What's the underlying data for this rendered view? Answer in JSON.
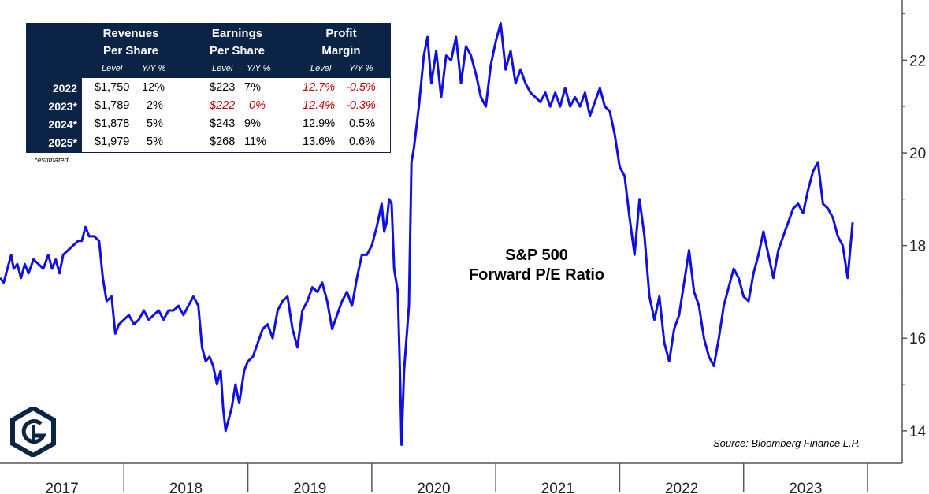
{
  "chart_data": {
    "type": "line",
    "title": "S&P 500",
    "subtitle": "Forward P/E Ratio",
    "source": "Source: Bloomberg Finance L.P.",
    "ylim": [
      13.3,
      23.3
    ],
    "xlim": [
      2017.0,
      2024.0
    ],
    "y_ticks": [
      14,
      16,
      18,
      20,
      22
    ],
    "x_tick_labels": [
      "2017",
      "2018",
      "2019",
      "2020",
      "2021",
      "2022",
      "2023"
    ],
    "series": [
      {
        "name": "S&P 500 Forward P/E",
        "color": "#1010e0",
        "points": [
          [
            2017.0,
            17.3
          ],
          [
            2017.03,
            17.2
          ],
          [
            2017.06,
            17.5
          ],
          [
            2017.09,
            17.8
          ],
          [
            2017.11,
            17.5
          ],
          [
            2017.14,
            17.6
          ],
          [
            2017.17,
            17.3
          ],
          [
            2017.2,
            17.6
          ],
          [
            2017.23,
            17.4
          ],
          [
            2017.27,
            17.7
          ],
          [
            2017.31,
            17.6
          ],
          [
            2017.35,
            17.5
          ],
          [
            2017.39,
            17.8
          ],
          [
            2017.42,
            17.5
          ],
          [
            2017.45,
            17.7
          ],
          [
            2017.48,
            17.4
          ],
          [
            2017.51,
            17.8
          ],
          [
            2017.55,
            17.9
          ],
          [
            2017.59,
            18.0
          ],
          [
            2017.63,
            18.1
          ],
          [
            2017.66,
            18.1
          ],
          [
            2017.69,
            18.4
          ],
          [
            2017.72,
            18.2
          ],
          [
            2017.76,
            18.2
          ],
          [
            2017.8,
            18.1
          ],
          [
            2017.83,
            17.3
          ],
          [
            2017.86,
            16.8
          ],
          [
            2017.9,
            16.9
          ],
          [
            2017.93,
            16.1
          ],
          [
            2017.96,
            16.3
          ],
          [
            2018.0,
            16.4
          ],
          [
            2018.04,
            16.5
          ],
          [
            2018.08,
            16.3
          ],
          [
            2018.12,
            16.4
          ],
          [
            2018.16,
            16.6
          ],
          [
            2018.2,
            16.4
          ],
          [
            2018.24,
            16.5
          ],
          [
            2018.28,
            16.6
          ],
          [
            2018.32,
            16.4
          ],
          [
            2018.36,
            16.6
          ],
          [
            2018.4,
            16.6
          ],
          [
            2018.44,
            16.7
          ],
          [
            2018.48,
            16.5
          ],
          [
            2018.52,
            16.7
          ],
          [
            2018.56,
            16.9
          ],
          [
            2018.6,
            16.7
          ],
          [
            2018.63,
            15.8
          ],
          [
            2018.66,
            15.5
          ],
          [
            2018.69,
            15.6
          ],
          [
            2018.72,
            15.4
          ],
          [
            2018.75,
            15.0
          ],
          [
            2018.78,
            15.3
          ],
          [
            2018.8,
            14.5
          ],
          [
            2018.82,
            14.0
          ],
          [
            2018.84,
            14.2
          ],
          [
            2018.87,
            14.5
          ],
          [
            2018.9,
            15.0
          ],
          [
            2018.93,
            14.6
          ],
          [
            2018.97,
            15.3
          ],
          [
            2019.0,
            15.5
          ],
          [
            2019.04,
            15.6
          ],
          [
            2019.08,
            15.9
          ],
          [
            2019.12,
            16.2
          ],
          [
            2019.16,
            16.3
          ],
          [
            2019.2,
            16.0
          ],
          [
            2019.24,
            16.6
          ],
          [
            2019.28,
            16.8
          ],
          [
            2019.32,
            16.9
          ],
          [
            2019.36,
            16.2
          ],
          [
            2019.4,
            15.8
          ],
          [
            2019.44,
            16.6
          ],
          [
            2019.48,
            16.8
          ],
          [
            2019.52,
            17.1
          ],
          [
            2019.56,
            17.0
          ],
          [
            2019.6,
            17.2
          ],
          [
            2019.64,
            16.8
          ],
          [
            2019.68,
            16.2
          ],
          [
            2019.72,
            16.5
          ],
          [
            2019.76,
            16.8
          ],
          [
            2019.8,
            17.0
          ],
          [
            2019.84,
            16.7
          ],
          [
            2019.88,
            17.3
          ],
          [
            2019.92,
            17.8
          ],
          [
            2019.96,
            17.8
          ],
          [
            2020.0,
            18.0
          ],
          [
            2020.04,
            18.4
          ],
          [
            2020.08,
            18.9
          ],
          [
            2020.1,
            18.3
          ],
          [
            2020.12,
            18.5
          ],
          [
            2020.14,
            19.0
          ],
          [
            2020.16,
            18.9
          ],
          [
            2020.18,
            17.5
          ],
          [
            2020.21,
            17.0
          ],
          [
            2020.23,
            15.0
          ],
          [
            2020.24,
            13.7
          ],
          [
            2020.26,
            15.3
          ],
          [
            2020.28,
            16.0
          ],
          [
            2020.3,
            16.7
          ],
          [
            2020.32,
            19.8
          ],
          [
            2020.34,
            20.1
          ],
          [
            2020.38,
            21.0
          ],
          [
            2020.42,
            22.1
          ],
          [
            2020.45,
            22.5
          ],
          [
            2020.48,
            21.5
          ],
          [
            2020.52,
            22.2
          ],
          [
            2020.56,
            21.2
          ],
          [
            2020.6,
            22.1
          ],
          [
            2020.64,
            22.0
          ],
          [
            2020.68,
            22.5
          ],
          [
            2020.72,
            21.5
          ],
          [
            2020.76,
            22.3
          ],
          [
            2020.8,
            22.1
          ],
          [
            2020.84,
            21.7
          ],
          [
            2020.88,
            21.2
          ],
          [
            2020.92,
            21.0
          ],
          [
            2020.96,
            21.9
          ],
          [
            2021.0,
            22.4
          ],
          [
            2021.04,
            22.8
          ],
          [
            2021.08,
            21.8
          ],
          [
            2021.12,
            22.2
          ],
          [
            2021.16,
            21.5
          ],
          [
            2021.2,
            21.8
          ],
          [
            2021.24,
            21.5
          ],
          [
            2021.28,
            21.3
          ],
          [
            2021.32,
            21.2
          ],
          [
            2021.36,
            21.1
          ],
          [
            2021.4,
            21.3
          ],
          [
            2021.44,
            21.0
          ],
          [
            2021.48,
            21.3
          ],
          [
            2021.52,
            21.0
          ],
          [
            2021.56,
            21.4
          ],
          [
            2021.6,
            21.0
          ],
          [
            2021.64,
            21.2
          ],
          [
            2021.68,
            21.0
          ],
          [
            2021.72,
            21.3
          ],
          [
            2021.76,
            20.8
          ],
          [
            2021.8,
            21.1
          ],
          [
            2021.84,
            21.4
          ],
          [
            2021.88,
            21.0
          ],
          [
            2021.92,
            20.9
          ],
          [
            2021.96,
            20.4
          ],
          [
            2022.0,
            19.7
          ],
          [
            2022.04,
            19.5
          ],
          [
            2022.08,
            18.6
          ],
          [
            2022.12,
            17.8
          ],
          [
            2022.16,
            19.0
          ],
          [
            2022.2,
            18.2
          ],
          [
            2022.24,
            16.9
          ],
          [
            2022.28,
            16.4
          ],
          [
            2022.32,
            16.9
          ],
          [
            2022.36,
            15.9
          ],
          [
            2022.4,
            15.5
          ],
          [
            2022.44,
            16.2
          ],
          [
            2022.48,
            16.5
          ],
          [
            2022.52,
            17.2
          ],
          [
            2022.56,
            17.9
          ],
          [
            2022.6,
            17.0
          ],
          [
            2022.64,
            16.7
          ],
          [
            2022.68,
            16.0
          ],
          [
            2022.72,
            15.6
          ],
          [
            2022.76,
            15.4
          ],
          [
            2022.8,
            16.0
          ],
          [
            2022.84,
            16.7
          ],
          [
            2022.88,
            17.1
          ],
          [
            2022.92,
            17.5
          ],
          [
            2022.96,
            17.3
          ],
          [
            2023.0,
            16.9
          ],
          [
            2023.04,
            16.8
          ],
          [
            2023.08,
            17.4
          ],
          [
            2023.12,
            17.8
          ],
          [
            2023.16,
            18.3
          ],
          [
            2023.2,
            17.8
          ],
          [
            2023.24,
            17.3
          ],
          [
            2023.28,
            17.9
          ],
          [
            2023.32,
            18.2
          ],
          [
            2023.36,
            18.5
          ],
          [
            2023.4,
            18.8
          ],
          [
            2023.44,
            18.9
          ],
          [
            2023.48,
            18.7
          ],
          [
            2023.52,
            19.2
          ],
          [
            2023.56,
            19.6
          ],
          [
            2023.6,
            19.8
          ],
          [
            2023.64,
            18.9
          ],
          [
            2023.68,
            18.8
          ],
          [
            2023.72,
            18.6
          ],
          [
            2023.76,
            18.2
          ],
          [
            2023.8,
            18.0
          ],
          [
            2023.84,
            17.3
          ],
          [
            2023.88,
            18.5
          ]
        ]
      }
    ]
  },
  "table": {
    "headers": [
      {
        "title_line1": "Revenues",
        "title_line2": "Per Share",
        "sub_level": "Level",
        "sub_yoy": "Y/Y %"
      },
      {
        "title_line1": "Earnings",
        "title_line2": "Per Share",
        "sub_level": "Level",
        "sub_yoy": "Y/Y %"
      },
      {
        "title_line1": "Profit",
        "title_line2": "Margin",
        "sub_level": "Level",
        "sub_yoy": "Y/Y %"
      }
    ],
    "rows": [
      {
        "year": "2022",
        "cells": [
          "$1,750",
          "12%",
          "$223",
          "7%",
          "12.7%",
          "-0.5%"
        ]
      },
      {
        "year": "2023*",
        "cells": [
          "$1,789",
          "2%",
          "$222",
          "0%",
          "12.4%",
          "-0.3%"
        ]
      },
      {
        "year": "2024*",
        "cells": [
          "$1,878",
          "5%",
          "$243",
          "9%",
          "12.9%",
          "0.5%"
        ]
      },
      {
        "year": "2025*",
        "cells": [
          "$1,979",
          "5%",
          "$268",
          "11%",
          "13.6%",
          "0.6%"
        ]
      }
    ],
    "note": "*estimated"
  },
  "colors": {
    "line": "#1010e0",
    "header_bg": "#0b2345",
    "negative": "#c00000",
    "axis": "#555555"
  }
}
